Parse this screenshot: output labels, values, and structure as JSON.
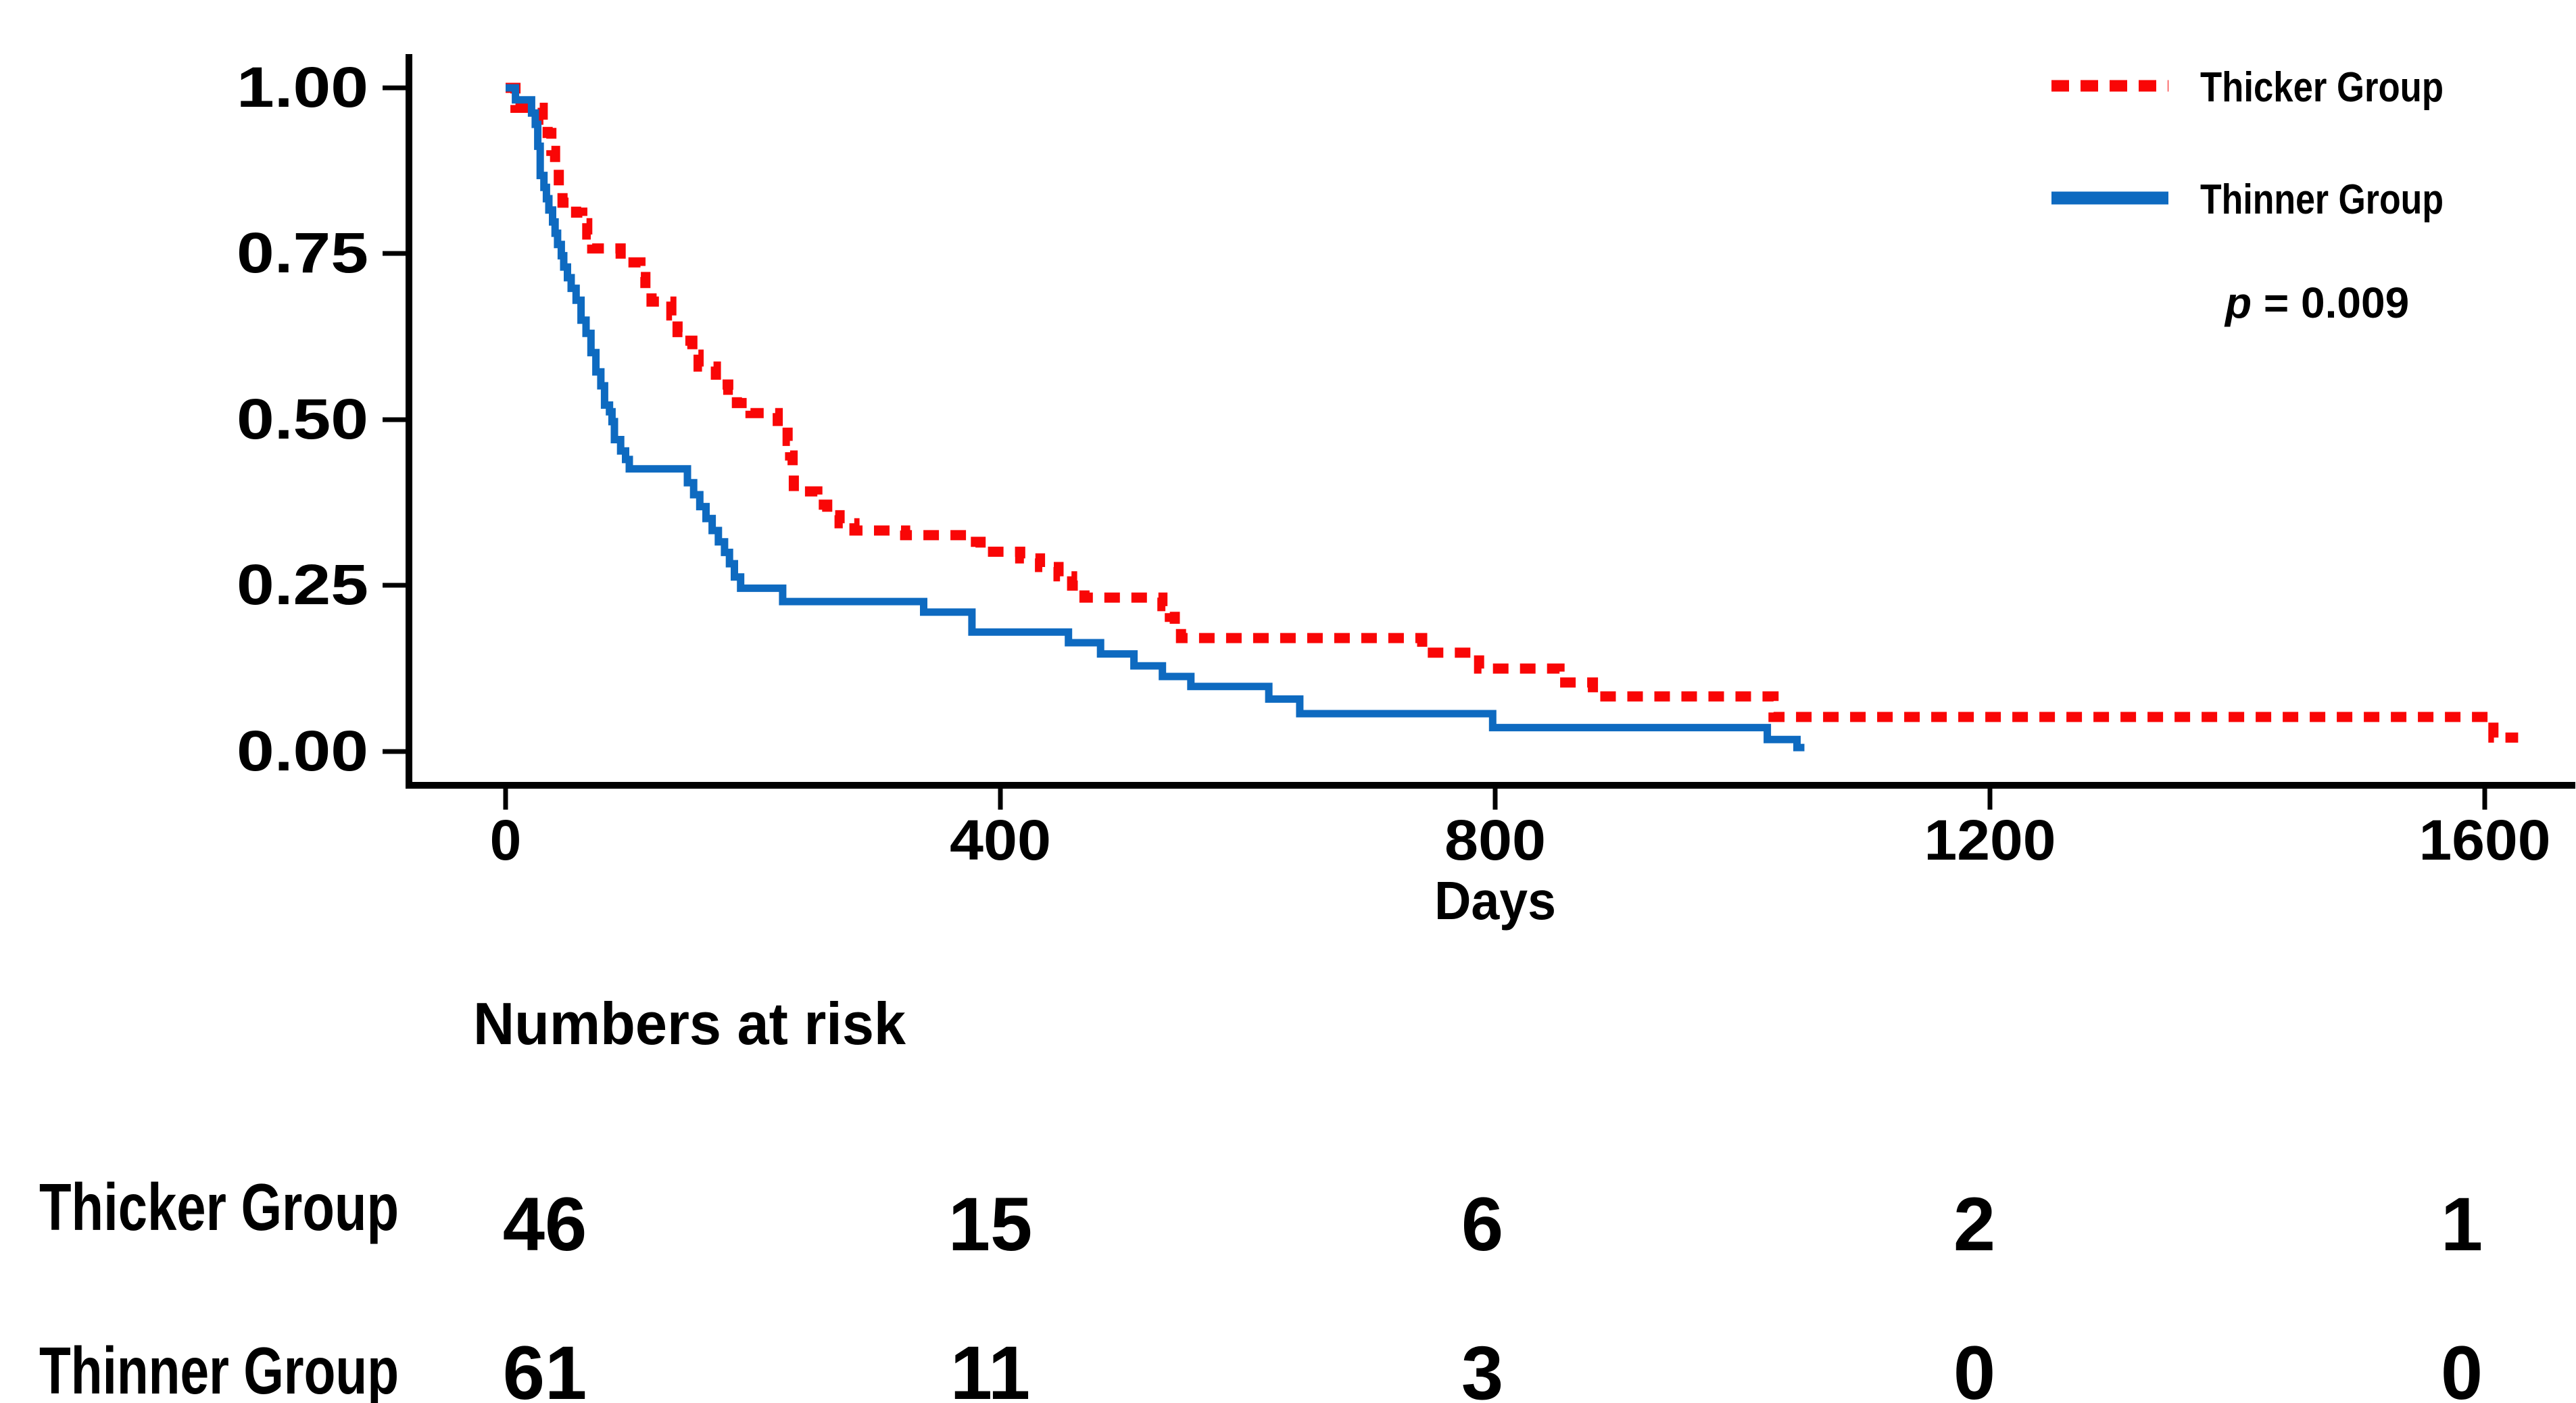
{
  "figure": {
    "p_italic": "p",
    "p_rest": " = 0.009"
  },
  "chart_data": {
    "type": "line",
    "subtype": "kaplan-meier-step",
    "title": "",
    "xlabel": "Days",
    "ylabel": "",
    "xlim": [
      0,
      1670
    ],
    "ylim": [
      0.0,
      1.0
    ],
    "grid": false,
    "legend_position": "top-right",
    "p_value": "p = 0.009",
    "x_ticks": [
      0,
      400,
      800,
      1200,
      1600
    ],
    "x_tick_labels": [
      "0",
      "400",
      "800",
      "1200",
      "1600"
    ],
    "y_ticks": [
      1.0,
      0.75,
      0.5,
      0.25,
      0.0
    ],
    "y_tick_labels": [
      "1.00",
      "0.75",
      "0.50",
      "0.25",
      "0.00"
    ],
    "series": [
      {
        "name": "Thicker Group",
        "color": "#f90606",
        "style": "dotted",
        "points": [
          [
            0,
            1.0
          ],
          [
            8,
            0.97
          ],
          [
            30,
            0.952
          ],
          [
            34,
            0.932
          ],
          [
            37,
            0.905
          ],
          [
            40,
            0.878
          ],
          [
            43,
            0.851
          ],
          [
            46,
            0.827
          ],
          [
            57,
            0.812
          ],
          [
            62,
            0.796
          ],
          [
            66,
            0.779
          ],
          [
            70,
            0.758
          ],
          [
            93,
            0.737
          ],
          [
            109,
            0.715
          ],
          [
            113,
            0.696
          ],
          [
            118,
            0.678
          ],
          [
            134,
            0.657
          ],
          [
            139,
            0.632
          ],
          [
            144,
            0.619
          ],
          [
            151,
            0.598
          ],
          [
            156,
            0.58
          ],
          [
            170,
            0.553
          ],
          [
            180,
            0.545
          ],
          [
            187,
            0.525
          ],
          [
            198,
            0.51
          ],
          [
            220,
            0.49
          ],
          [
            228,
            0.468
          ],
          [
            230,
            0.446
          ],
          [
            232,
            0.418
          ],
          [
            233,
            0.392
          ],
          [
            252,
            0.372
          ],
          [
            260,
            0.356
          ],
          [
            270,
            0.344
          ],
          [
            282,
            0.333
          ],
          [
            323,
            0.326
          ],
          [
            373,
            0.316
          ],
          [
            384,
            0.301
          ],
          [
            416,
            0.291
          ],
          [
            432,
            0.278
          ],
          [
            447,
            0.264
          ],
          [
            458,
            0.25
          ],
          [
            468,
            0.232
          ],
          [
            531,
            0.219
          ],
          [
            537,
            0.203
          ],
          [
            541,
            0.186
          ],
          [
            546,
            0.171
          ],
          [
            741,
            0.149
          ],
          [
            787,
            0.125
          ],
          [
            852,
            0.104
          ],
          [
            879,
            0.083
          ],
          [
            1025,
            0.052
          ],
          [
            1607,
            0.021
          ],
          [
            1627,
            0.021
          ]
        ]
      },
      {
        "name": "Thinner Group",
        "color": "#0e6ac0",
        "style": "solid",
        "points": [
          [
            0,
            1.0
          ],
          [
            8,
            0.982
          ],
          [
            21,
            0.962
          ],
          [
            24,
            0.945
          ],
          [
            26,
            0.912
          ],
          [
            28,
            0.868
          ],
          [
            31,
            0.85
          ],
          [
            33,
            0.833
          ],
          [
            35,
            0.816
          ],
          [
            38,
            0.798
          ],
          [
            40,
            0.781
          ],
          [
            42,
            0.764
          ],
          [
            45,
            0.747
          ],
          [
            47,
            0.73
          ],
          [
            50,
            0.714
          ],
          [
            53,
            0.698
          ],
          [
            57,
            0.68
          ],
          [
            61,
            0.65
          ],
          [
            65,
            0.63
          ],
          [
            69,
            0.601
          ],
          [
            73,
            0.572
          ],
          [
            77,
            0.551
          ],
          [
            80,
            0.522
          ],
          [
            84,
            0.512
          ],
          [
            86,
            0.497
          ],
          [
            88,
            0.47
          ],
          [
            93,
            0.453
          ],
          [
            97,
            0.44
          ],
          [
            100,
            0.426
          ],
          [
            147,
            0.405
          ],
          [
            152,
            0.387
          ],
          [
            157,
            0.369
          ],
          [
            162,
            0.351
          ],
          [
            167,
            0.333
          ],
          [
            172,
            0.316
          ],
          [
            177,
            0.3
          ],
          [
            181,
            0.283
          ],
          [
            185,
            0.263
          ],
          [
            190,
            0.246
          ],
          [
            224,
            0.226
          ],
          [
            338,
            0.21
          ],
          [
            377,
            0.18
          ],
          [
            455,
            0.164
          ],
          [
            481,
            0.147
          ],
          [
            508,
            0.129
          ],
          [
            531,
            0.113
          ],
          [
            554,
            0.098
          ],
          [
            617,
            0.079
          ],
          [
            642,
            0.057
          ],
          [
            798,
            0.036
          ],
          [
            1020,
            0.018
          ],
          [
            1044,
            0.006
          ],
          [
            1050,
            0.006
          ]
        ]
      }
    ],
    "risk_table": {
      "title": "Numbers at risk",
      "time_points": [
        0,
        400,
        800,
        1200,
        1600
      ],
      "rows": [
        {
          "label": "Thicker Group",
          "color": "#f90606",
          "values": [
            "46",
            "15",
            "6",
            "2",
            "1"
          ]
        },
        {
          "label": "Thinner Group",
          "color": "#0e6ac0",
          "values": [
            "61",
            "11",
            "3",
            "0",
            "0"
          ]
        }
      ]
    }
  }
}
